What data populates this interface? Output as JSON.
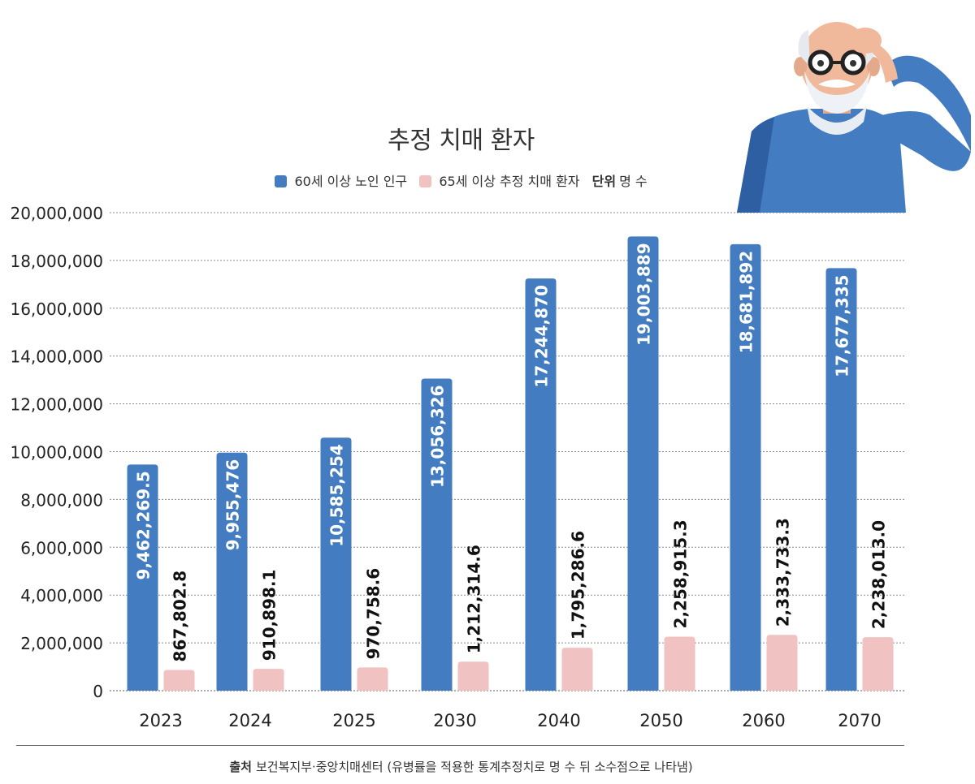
{
  "chart_data": {
    "type": "bar",
    "title": "추정 치매 환자",
    "categories": [
      "2023",
      "2024",
      "2025",
      "2030",
      "2040",
      "2050",
      "2060",
      "2070"
    ],
    "series": [
      {
        "name": "60세 이상 노인 인구",
        "color": "#437cc0",
        "values": [
          9462269.5,
          9955476,
          10585254,
          13056326,
          17244870,
          19003889,
          18681892,
          17677335
        ],
        "labels": [
          "9,462,269.5",
          "9,955,476",
          "10,585,254",
          "13,056,326",
          "17,244,870",
          "19,003,889",
          "18,681,892",
          "17,677,335"
        ]
      },
      {
        "name": "65세 이상 추정 치매 환자",
        "color": "#f0c2c2",
        "values": [
          867802.8,
          910898.1,
          970758.6,
          1212314.6,
          1795286.6,
          2258915.3,
          2333733.3,
          2238013.0
        ],
        "labels": [
          "867,802.8",
          "910,898.1",
          "970,758.6",
          "1,212,314.6",
          "1,795,286.6",
          "2,258,915.3",
          "2,333,733.3",
          "2,238,013.0"
        ]
      }
    ],
    "ylim": [
      0,
      20000000
    ],
    "yticks": [
      0,
      2000000,
      4000000,
      6000000,
      8000000,
      10000000,
      12000000,
      14000000,
      16000000,
      18000000,
      20000000
    ],
    "ytick_labels": [
      "0",
      "2,000,000",
      "4,000,000",
      "6,000,000",
      "8,000,000",
      "10,000,000",
      "12,000,000",
      "14,000,000",
      "16,000,000",
      "18,000,000",
      "20,000,000"
    ],
    "grid": true,
    "legend_position": "top-center"
  },
  "legend": {
    "unit_label": "단위",
    "unit_value": "명 수"
  },
  "footer": {
    "source_label": "출처",
    "source_text": "보건복지부·중앙치매센터 (유병률을 적용한 통계추정치로 명 수 뒤 소수점으로 나타냄)"
  },
  "illustration": {
    "icon": "elderly-man-scratching-head"
  }
}
